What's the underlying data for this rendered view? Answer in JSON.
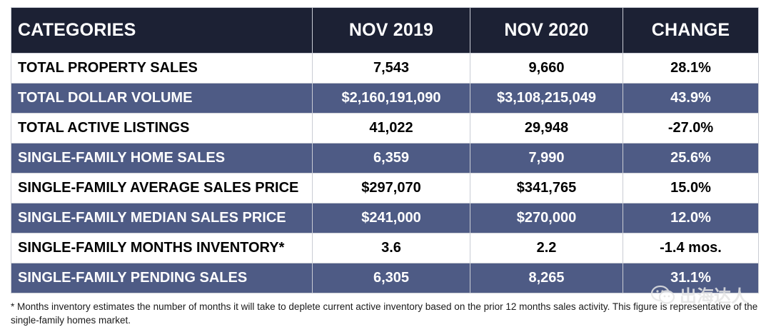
{
  "chart_data": {
    "type": "table",
    "columns": [
      "CATEGORIES",
      "NOV 2019",
      "NOV 2020",
      "CHANGE"
    ],
    "rows": [
      {
        "category": "TOTAL PROPERTY SALES",
        "nov_2019": "7,543",
        "nov_2020": "9,660",
        "change": "28.1%"
      },
      {
        "category": "TOTAL DOLLAR VOLUME",
        "nov_2019": "$2,160,191,090",
        "nov_2020": "$3,108,215,049",
        "change": "43.9%"
      },
      {
        "category": "TOTAL ACTIVE LISTINGS",
        "nov_2019": "41,022",
        "nov_2020": "29,948",
        "change": "-27.0%"
      },
      {
        "category": "SINGLE-FAMILY HOME SALES",
        "nov_2019": "6,359",
        "nov_2020": "7,990",
        "change": "25.6%"
      },
      {
        "category": "SINGLE-FAMILY AVERAGE SALES PRICE",
        "nov_2019": "$297,070",
        "nov_2020": "$341,765",
        "change": "15.0%"
      },
      {
        "category": "SINGLE-FAMILY MEDIAN SALES PRICE",
        "nov_2019": "$241,000",
        "nov_2020": "$270,000",
        "change": "12.0%"
      },
      {
        "category": "SINGLE-FAMILY MONTHS INVENTORY*",
        "nov_2019": "3.6",
        "nov_2020": "2.2",
        "change": "-1.4 mos."
      },
      {
        "category": "SINGLE-FAMILY PENDING SALES",
        "nov_2019": "6,305",
        "nov_2020": "8,265",
        "change": "31.1%"
      }
    ]
  },
  "footnote": "* Months inventory estimates the number of months it will take to deplete current active inventory based on the prior 12 months sales activity. This figure is representative of the single-family homes market.",
  "watermark": {
    "text": "出海达人",
    "icon": "wechat-icon"
  },
  "colors": {
    "header_bg": "#1c2134",
    "alt_row_bg": "#4e5b85",
    "plain_row_bg": "#ffffff",
    "border": "#c9ccd4"
  }
}
